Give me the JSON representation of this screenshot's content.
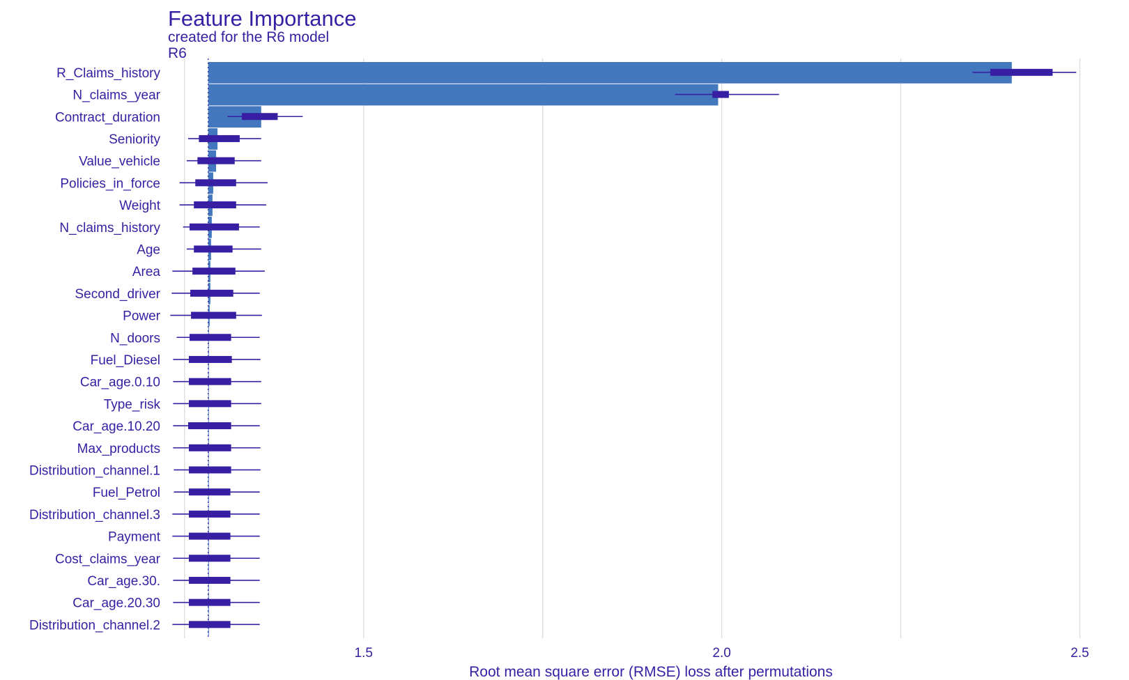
{
  "chart_data": {
    "type": "bar",
    "title": "Feature Importance",
    "subtitle": "created for the R6 model",
    "model_label": "R6",
    "xlabel": "Root mean square error (RMSE) loss after permutations",
    "xlim": [
      1.22,
      2.52
    ],
    "xticks": [
      1.5,
      2.0,
      2.5
    ],
    "xtick_labels": [
      "1.5",
      "2.0",
      "2.5"
    ],
    "grid_values": [
      1.25,
      1.5,
      1.75,
      2.0,
      2.25,
      2.5
    ],
    "baseline": 1.283,
    "colors": {
      "bar": "#4378bf",
      "box": "#371ea3",
      "grid": "#dcdcdc"
    },
    "features": [
      {
        "name": "R_Claims_history",
        "value": 2.405,
        "min": 2.35,
        "q1": 2.375,
        "q3": 2.462,
        "max": 2.495
      },
      {
        "name": "N_claims_year",
        "value": 1.995,
        "min": 1.935,
        "q1": 1.987,
        "q3": 2.01,
        "max": 2.08
      },
      {
        "name": "Contract_duration",
        "value": 1.357,
        "min": 1.31,
        "q1": 1.33,
        "q3": 1.38,
        "max": 1.415
      },
      {
        "name": "Seniority",
        "value": 1.296,
        "min": 1.255,
        "q1": 1.27,
        "q3": 1.327,
        "max": 1.357
      },
      {
        "name": "Value_vehicle",
        "value": 1.294,
        "min": 1.253,
        "q1": 1.268,
        "q3": 1.32,
        "max": 1.357
      },
      {
        "name": "Policies_in_force",
        "value": 1.29,
        "min": 1.243,
        "q1": 1.265,
        "q3": 1.322,
        "max": 1.366
      },
      {
        "name": "Weight",
        "value": 1.289,
        "min": 1.243,
        "q1": 1.263,
        "q3": 1.322,
        "max": 1.364
      },
      {
        "name": "N_claims_history",
        "value": 1.288,
        "min": 1.248,
        "q1": 1.257,
        "q3": 1.326,
        "max": 1.355
      },
      {
        "name": "Age",
        "value": 1.287,
        "min": 1.253,
        "q1": 1.263,
        "q3": 1.317,
        "max": 1.357
      },
      {
        "name": "Area",
        "value": 1.286,
        "min": 1.233,
        "q1": 1.261,
        "q3": 1.321,
        "max": 1.362
      },
      {
        "name": "Second_driver",
        "value": 1.286,
        "min": 1.232,
        "q1": 1.258,
        "q3": 1.318,
        "max": 1.355
      },
      {
        "name": "Power",
        "value": 1.285,
        "min": 1.23,
        "q1": 1.259,
        "q3": 1.322,
        "max": 1.358
      },
      {
        "name": "N_doors",
        "value": 1.284,
        "min": 1.239,
        "q1": 1.257,
        "q3": 1.315,
        "max": 1.355
      },
      {
        "name": "Fuel_Diesel",
        "value": 1.284,
        "min": 1.234,
        "q1": 1.256,
        "q3": 1.316,
        "max": 1.356
      },
      {
        "name": "Car_age.0.10",
        "value": 1.283,
        "min": 1.234,
        "q1": 1.256,
        "q3": 1.315,
        "max": 1.357
      },
      {
        "name": "Type_risk",
        "value": 1.283,
        "min": 1.234,
        "q1": 1.256,
        "q3": 1.315,
        "max": 1.357
      },
      {
        "name": "Car_age.10.20",
        "value": 1.283,
        "min": 1.234,
        "q1": 1.255,
        "q3": 1.315,
        "max": 1.355
      },
      {
        "name": "Max_products",
        "value": 1.283,
        "min": 1.234,
        "q1": 1.256,
        "q3": 1.315,
        "max": 1.356
      },
      {
        "name": "Distribution_channel.1",
        "value": 1.283,
        "min": 1.235,
        "q1": 1.256,
        "q3": 1.315,
        "max": 1.356
      },
      {
        "name": "Fuel_Petrol",
        "value": 1.283,
        "min": 1.235,
        "q1": 1.256,
        "q3": 1.314,
        "max": 1.355
      },
      {
        "name": "Distribution_channel.3",
        "value": 1.283,
        "min": 1.233,
        "q1": 1.256,
        "q3": 1.314,
        "max": 1.355
      },
      {
        "name": "Payment",
        "value": 1.283,
        "min": 1.233,
        "q1": 1.256,
        "q3": 1.314,
        "max": 1.355
      },
      {
        "name": "Cost_claims_year",
        "value": 1.283,
        "min": 1.234,
        "q1": 1.256,
        "q3": 1.314,
        "max": 1.355
      },
      {
        "name": "Car_age.30.",
        "value": 1.283,
        "min": 1.234,
        "q1": 1.256,
        "q3": 1.314,
        "max": 1.355
      },
      {
        "name": "Car_age.20.30",
        "value": 1.283,
        "min": 1.234,
        "q1": 1.256,
        "q3": 1.314,
        "max": 1.355
      },
      {
        "name": "Distribution_channel.2",
        "value": 1.283,
        "min": 1.233,
        "q1": 1.256,
        "q3": 1.314,
        "max": 1.355
      }
    ]
  }
}
